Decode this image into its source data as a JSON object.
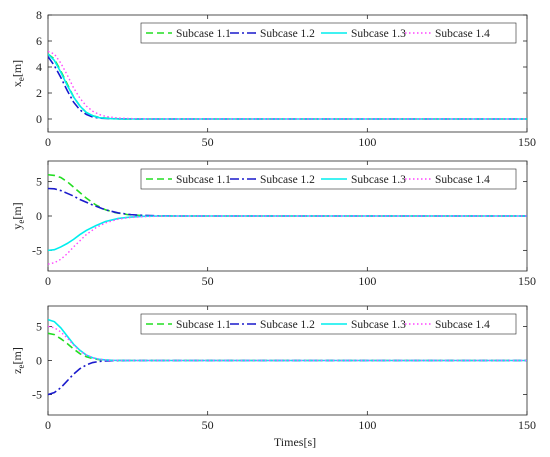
{
  "legend_labels": [
    "Subcase 1.1",
    "Subcase 1.2",
    "Subcase 1.3",
    "Subcase 1.4"
  ],
  "series_colors": [
    "#22dd22",
    "#1a1acc",
    "#00eeee",
    "#ff44ff"
  ],
  "xlabel": "Times[s]",
  "chart_data": [
    {
      "type": "line",
      "ylabel": "x_e[m]",
      "ylabel_main": "x",
      "ylabel_sub": "e",
      "ylabel_unit": "[m]",
      "xlim": [
        0,
        150
      ],
      "ylim": [
        -1,
        8
      ],
      "xticks": [
        0,
        50,
        100,
        150
      ],
      "yticks": [
        0,
        2,
        4,
        6,
        8
      ],
      "legend_position": "top-right",
      "series": [
        {
          "name": "Subcase 1.1",
          "x": [
            0,
            2,
            4,
            6,
            8,
            10,
            12,
            14,
            16,
            20,
            25,
            30,
            40,
            60,
            100,
            150
          ],
          "y": [
            5.0,
            4.6,
            3.7,
            2.7,
            1.7,
            1.0,
            0.5,
            0.25,
            0.12,
            0.03,
            0.0,
            0.0,
            0.0,
            0.0,
            0.0,
            0.0
          ]
        },
        {
          "name": "Subcase 1.2",
          "x": [
            0,
            2,
            4,
            6,
            8,
            10,
            12,
            14,
            16,
            20,
            25,
            30,
            40,
            60,
            100,
            150
          ],
          "y": [
            4.8,
            4.1,
            3.2,
            2.2,
            1.3,
            0.7,
            0.35,
            0.15,
            0.07,
            0.02,
            0.0,
            0.0,
            0.0,
            0.0,
            0.0,
            0.0
          ]
        },
        {
          "name": "Subcase 1.3",
          "x": [
            0,
            2,
            4,
            6,
            8,
            10,
            12,
            14,
            16,
            20,
            25,
            30,
            40,
            60,
            100,
            150
          ],
          "y": [
            5.0,
            4.5,
            3.6,
            2.6,
            1.7,
            1.0,
            0.5,
            0.25,
            0.1,
            0.02,
            0.0,
            0.0,
            0.0,
            0.0,
            0.0,
            0.0
          ]
        },
        {
          "name": "Subcase 1.4",
          "x": [
            0,
            2,
            4,
            6,
            8,
            10,
            12,
            14,
            16,
            18,
            22,
            26,
            30,
            40,
            60,
            100,
            150
          ],
          "y": [
            5.2,
            5.0,
            4.3,
            3.4,
            2.4,
            1.6,
            1.0,
            0.6,
            0.35,
            0.2,
            0.07,
            0.03,
            0.01,
            0.0,
            0.0,
            0.0,
            0.0
          ]
        }
      ]
    },
    {
      "type": "line",
      "ylabel": "y_e[m]",
      "ylabel_main": "y",
      "ylabel_sub": "e",
      "ylabel_unit": "[m]",
      "xlim": [
        0,
        150
      ],
      "ylim": [
        -8,
        8
      ],
      "xticks": [
        0,
        50,
        100,
        150
      ],
      "yticks": [
        -5,
        0,
        5
      ],
      "legend_position": "top-right",
      "series": [
        {
          "name": "Subcase 1.1",
          "x": [
            0,
            2,
            4,
            6,
            8,
            10,
            12,
            15,
            18,
            21,
            25,
            30,
            35,
            40,
            60,
            100,
            150
          ],
          "y": [
            6.0,
            5.9,
            5.6,
            5.0,
            4.2,
            3.4,
            2.6,
            1.6,
            0.9,
            0.5,
            0.2,
            0.05,
            0.0,
            0.0,
            0.0,
            0.0,
            0.0
          ]
        },
        {
          "name": "Subcase 1.2",
          "x": [
            0,
            2,
            4,
            6,
            8,
            10,
            14,
            18,
            22,
            26,
            30,
            35,
            40,
            60,
            100,
            150
          ],
          "y": [
            4.0,
            3.95,
            3.7,
            3.3,
            2.9,
            2.4,
            1.6,
            0.9,
            0.45,
            0.2,
            0.08,
            0.02,
            0.0,
            0.0,
            0.0,
            0.0
          ]
        },
        {
          "name": "Subcase 1.3",
          "x": [
            0,
            2,
            4,
            6,
            8,
            10,
            12,
            15,
            18,
            22,
            26,
            30,
            35,
            40,
            60,
            100,
            150
          ],
          "y": [
            -5.0,
            -4.9,
            -4.5,
            -4.0,
            -3.4,
            -2.7,
            -2.1,
            -1.4,
            -0.8,
            -0.35,
            -0.15,
            -0.05,
            0.0,
            0.0,
            0.0,
            0.0,
            0.0
          ]
        },
        {
          "name": "Subcase 1.4",
          "x": [
            0,
            2,
            4,
            6,
            8,
            10,
            12,
            15,
            18,
            22,
            26,
            30,
            35,
            40,
            60,
            100,
            150
          ],
          "y": [
            -7.0,
            -6.8,
            -6.3,
            -5.5,
            -4.5,
            -3.6,
            -2.7,
            -1.7,
            -1.0,
            -0.45,
            -0.2,
            -0.08,
            -0.02,
            0.0,
            0.0,
            0.0,
            0.0
          ]
        }
      ]
    },
    {
      "type": "line",
      "ylabel": "z_e[m]",
      "ylabel_main": "z",
      "ylabel_sub": "e",
      "ylabel_unit": "[m]",
      "xlim": [
        0,
        150
      ],
      "ylim": [
        -8,
        8
      ],
      "xticks": [
        0,
        50,
        100,
        150
      ],
      "yticks": [
        -5,
        0,
        5
      ],
      "legend_position": "top-right",
      "series": [
        {
          "name": "Subcase 1.1",
          "x": [
            0,
            2,
            4,
            6,
            8,
            10,
            12,
            14,
            16,
            18,
            20,
            25,
            30,
            40,
            60,
            100,
            150
          ],
          "y": [
            4.0,
            3.8,
            3.2,
            2.5,
            1.7,
            1.0,
            0.55,
            0.28,
            0.13,
            0.06,
            0.02,
            0.0,
            0.0,
            0.0,
            0.0,
            0.0,
            0.0
          ]
        },
        {
          "name": "Subcase 1.2",
          "x": [
            0,
            2,
            4,
            6,
            8,
            10,
            12,
            14,
            16,
            18,
            20,
            25,
            30,
            40,
            60,
            100,
            150
          ],
          "y": [
            -5.0,
            -4.7,
            -4.0,
            -3.0,
            -2.0,
            -1.2,
            -0.65,
            -0.3,
            -0.14,
            -0.06,
            -0.02,
            0.0,
            0.0,
            0.0,
            0.0,
            0.0,
            0.0
          ]
        },
        {
          "name": "Subcase 1.3",
          "x": [
            0,
            2,
            4,
            6,
            8,
            10,
            12,
            14,
            16,
            18,
            20,
            25,
            30,
            40,
            60,
            100,
            150
          ],
          "y": [
            6.0,
            5.7,
            4.8,
            3.6,
            2.4,
            1.5,
            0.8,
            0.4,
            0.18,
            0.08,
            0.03,
            0.0,
            0.0,
            0.0,
            0.0,
            0.0,
            0.0
          ]
        },
        {
          "name": "Subcase 1.4",
          "x": [
            0,
            2,
            4,
            6,
            8,
            10,
            12,
            14,
            16,
            18,
            20,
            25,
            30,
            40,
            60,
            100,
            150
          ],
          "y": [
            5.0,
            4.8,
            4.2,
            3.3,
            2.3,
            1.4,
            0.8,
            0.4,
            0.18,
            0.08,
            0.03,
            0.0,
            0.0,
            0.0,
            0.0,
            0.0,
            0.0
          ]
        }
      ]
    }
  ]
}
